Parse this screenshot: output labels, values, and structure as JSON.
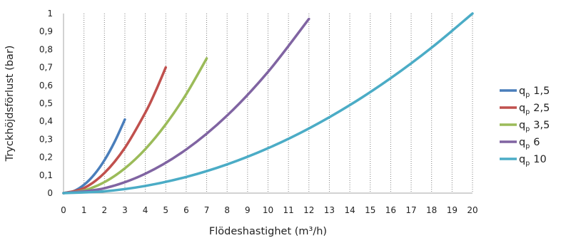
{
  "chart_data": {
    "type": "line",
    "xlabel": "Flödeshastighet (m³/h)",
    "ylabel": "Tryckhöjdsförlust (bar)",
    "xlim": [
      0,
      20
    ],
    "ylim": [
      0,
      1
    ],
    "x_ticks": [
      "0",
      "1",
      "2",
      "3",
      "4",
      "5",
      "6",
      "7",
      "8",
      "9",
      "10",
      "11",
      "12",
      "13",
      "14",
      "15",
      "16",
      "17",
      "18",
      "19",
      "20"
    ],
    "y_ticks": [
      "0",
      "0,1",
      "0,2",
      "0,3",
      "0,4",
      "0,5",
      "0,6",
      "0,7",
      "0,8",
      "0,9",
      "1"
    ],
    "grid": "vertical dotted lines at every integer x",
    "legend_position": "right",
    "series": [
      {
        "name_base": "q",
        "name_sub": "p",
        "name_value": "1,5",
        "color": "#4a7ebb",
        "points": [
          [
            0,
            0
          ],
          [
            0.5,
            0.011
          ],
          [
            1,
            0.046
          ],
          [
            1.5,
            0.103
          ],
          [
            2,
            0.183
          ],
          [
            2.5,
            0.286
          ],
          [
            3,
            0.41
          ]
        ]
      },
      {
        "name_base": "q",
        "name_sub": "p",
        "name_value": "2,5",
        "color": "#c0504d",
        "points": [
          [
            0,
            0
          ],
          [
            1,
            0.028
          ],
          [
            2,
            0.112
          ],
          [
            3,
            0.252
          ],
          [
            4,
            0.448
          ],
          [
            4.5,
            0.567
          ],
          [
            5,
            0.7
          ]
        ]
      },
      {
        "name_base": "q",
        "name_sub": "p",
        "name_value": "3,5",
        "color": "#9bbb59",
        "points": [
          [
            0,
            0
          ],
          [
            1,
            0.015
          ],
          [
            2,
            0.061
          ],
          [
            3,
            0.138
          ],
          [
            4,
            0.245
          ],
          [
            5,
            0.383
          ],
          [
            6,
            0.551
          ],
          [
            7,
            0.75
          ]
        ]
      },
      {
        "name_base": "q",
        "name_sub": "p",
        "name_value": "6",
        "color": "#8064a2",
        "points": [
          [
            0,
            0
          ],
          [
            2,
            0.027
          ],
          [
            4,
            0.108
          ],
          [
            6,
            0.243
          ],
          [
            8,
            0.432
          ],
          [
            10,
            0.675
          ],
          [
            12,
            0.97
          ]
        ]
      },
      {
        "name_base": "q",
        "name_sub": "p",
        "name_value": "10",
        "color": "#4bacc6",
        "points": [
          [
            0,
            0
          ],
          [
            2,
            0.01
          ],
          [
            4,
            0.04
          ],
          [
            6,
            0.09
          ],
          [
            8,
            0.16
          ],
          [
            10,
            0.25
          ],
          [
            12,
            0.36
          ],
          [
            14,
            0.49
          ],
          [
            16,
            0.64
          ],
          [
            18,
            0.81
          ],
          [
            20,
            1.0
          ]
        ]
      }
    ]
  }
}
